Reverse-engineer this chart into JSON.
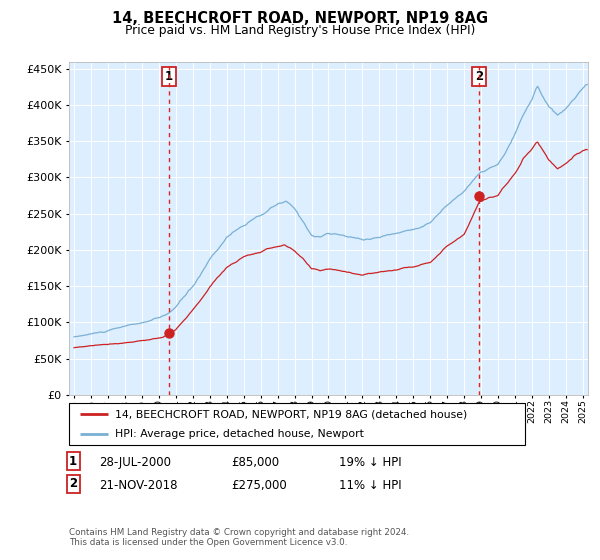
{
  "title": "14, BEECHCROFT ROAD, NEWPORT, NP19 8AG",
  "subtitle": "Price paid vs. HM Land Registry's House Price Index (HPI)",
  "sale1_date": "28-JUL-2000",
  "sale1_price": 85000,
  "sale1_label": "1",
  "sale1_pct": "19% ↓ HPI",
  "sale1_year": 2000.57,
  "sale2_date": "21-NOV-2018",
  "sale2_price": 275000,
  "sale2_label": "2",
  "sale2_pct": "11% ↓ HPI",
  "sale2_year": 2018.89,
  "legend_line1": "14, BEECHCROFT ROAD, NEWPORT, NP19 8AG (detached house)",
  "legend_line2": "HPI: Average price, detached house, Newport",
  "footnote": "Contains HM Land Registry data © Crown copyright and database right 2024.\nThis data is licensed under the Open Government Licence v3.0.",
  "hpi_color": "#7ab0d4",
  "price_color": "#cc2222",
  "ylim_min": 0,
  "ylim_max": 460000,
  "xlim_min": 1994.7,
  "xlim_max": 2025.3
}
